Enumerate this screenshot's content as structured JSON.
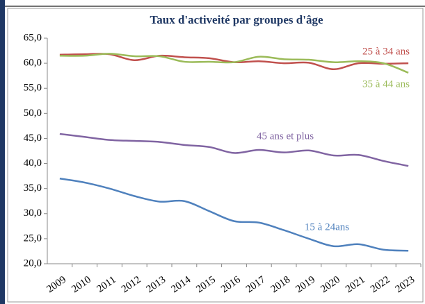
{
  "chart_data": {
    "type": "line",
    "title": "Taux d'activeité par groupes d'âge",
    "categories": [
      "2009",
      "2010",
      "2011",
      "2012",
      "2013",
      "2014",
      "2015",
      "2016",
      "2017",
      "2018",
      "2019",
      "2020",
      "2021",
      "2022",
      "2023"
    ],
    "series": [
      {
        "name": "25 à 34 ans",
        "color": "#c0504d",
        "values": [
          61.7,
          61.8,
          61.8,
          60.6,
          61.5,
          61.2,
          61.0,
          60.2,
          60.4,
          60.0,
          60.1,
          58.8,
          60.0,
          59.9,
          60.0
        ]
      },
      {
        "name": "35 à 44 ans",
        "color": "#9bbb59",
        "values": [
          61.5,
          61.5,
          61.9,
          61.4,
          61.4,
          60.3,
          60.3,
          60.2,
          61.3,
          60.8,
          60.7,
          60.2,
          60.4,
          60.0,
          58.1
        ]
      },
      {
        "name": "45 ans et plus",
        "color": "#8064a2",
        "values": [
          45.9,
          45.3,
          44.7,
          44.5,
          44.3,
          43.7,
          43.3,
          42.1,
          42.7,
          42.2,
          42.6,
          41.6,
          41.7,
          40.5,
          39.5
        ]
      },
      {
        "name": "15 à 24ans",
        "color": "#4f81bd",
        "values": [
          37.0,
          36.2,
          35.0,
          33.5,
          32.4,
          32.5,
          30.5,
          28.5,
          28.2,
          26.7,
          25.0,
          23.5,
          23.9,
          22.8,
          22.6
        ]
      }
    ],
    "ylim": [
      20,
      65
    ],
    "yticks": [
      {
        "value": 20,
        "label": "20,0"
      },
      {
        "value": 25,
        "label": "25,0"
      },
      {
        "value": 30,
        "label": "30,0"
      },
      {
        "value": 35,
        "label": "35,0"
      },
      {
        "value": 40,
        "label": "40,0"
      },
      {
        "value": 45,
        "label": "45,0"
      },
      {
        "value": 50,
        "label": "50,0"
      },
      {
        "value": 55,
        "label": "55,0"
      },
      {
        "value": 60,
        "label": "60,0"
      },
      {
        "value": 65,
        "label": "65,0"
      }
    ],
    "grid": false
  }
}
